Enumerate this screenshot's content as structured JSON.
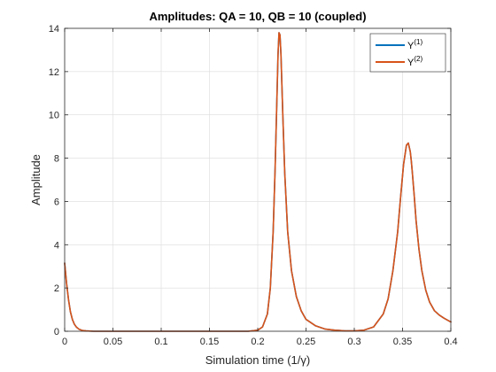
{
  "chart_data": {
    "type": "line",
    "title": "Amplitudes: QA = 10, QB = 10 (coupled)",
    "xlabel": "Simulation time (1/γ)",
    "ylabel": "Amplitude",
    "xlim": [
      0,
      0.4
    ],
    "ylim": [
      0,
      14
    ],
    "xticks": [
      "0",
      "0.05",
      "0.1",
      "0.15",
      "0.2",
      "0.25",
      "0.3",
      "0.35",
      "0.4"
    ],
    "yticks": [
      "0",
      "2",
      "4",
      "6",
      "8",
      "10",
      "12",
      "14"
    ],
    "grid": true,
    "legend_position": "top-right",
    "series": [
      {
        "name": "Y(1)",
        "name_base": "Y",
        "name_sup": "(1)",
        "color": "#0072BD",
        "x": [
          0,
          0.002,
          0.004,
          0.006,
          0.008,
          0.01,
          0.012,
          0.015,
          0.018,
          0.022,
          0.03,
          0.05,
          0.1,
          0.15,
          0.19,
          0.2,
          0.205,
          0.21,
          0.213,
          0.216,
          0.218,
          0.22,
          0.221,
          0.222,
          0.223,
          0.224,
          0.226,
          0.228,
          0.231,
          0.235,
          0.24,
          0.245,
          0.25,
          0.26,
          0.27,
          0.28,
          0.29,
          0.3,
          0.31,
          0.32,
          0.33,
          0.335,
          0.34,
          0.345,
          0.348,
          0.351,
          0.354,
          0.356,
          0.358,
          0.359,
          0.36,
          0.362,
          0.364,
          0.367,
          0.37,
          0.374,
          0.378,
          0.383,
          0.388,
          0.393,
          0.398,
          0.4
        ],
        "values": [
          3.15,
          2.2,
          1.45,
          0.9,
          0.55,
          0.33,
          0.2,
          0.09,
          0.04,
          0.015,
          0.0,
          0.0,
          0.0,
          0.0,
          0.0,
          0.05,
          0.2,
          0.8,
          2.0,
          4.6,
          7.5,
          11.0,
          12.8,
          13.8,
          13.7,
          12.8,
          10.0,
          7.3,
          4.6,
          2.8,
          1.6,
          0.95,
          0.55,
          0.25,
          0.1,
          0.05,
          0.02,
          0.02,
          0.05,
          0.2,
          0.8,
          1.5,
          2.8,
          4.6,
          6.2,
          7.7,
          8.6,
          8.7,
          8.3,
          7.9,
          7.4,
          6.3,
          5.1,
          3.8,
          2.8,
          1.9,
          1.35,
          0.95,
          0.75,
          0.6,
          0.48,
          0.43
        ]
      },
      {
        "name": "Y(2)",
        "name_base": "Y",
        "name_sup": "(2)",
        "color": "#D95319",
        "x": [
          0,
          0.002,
          0.004,
          0.006,
          0.008,
          0.01,
          0.012,
          0.015,
          0.018,
          0.022,
          0.03,
          0.05,
          0.1,
          0.15,
          0.19,
          0.2,
          0.205,
          0.21,
          0.213,
          0.216,
          0.218,
          0.22,
          0.221,
          0.222,
          0.223,
          0.224,
          0.226,
          0.228,
          0.231,
          0.235,
          0.24,
          0.245,
          0.25,
          0.26,
          0.27,
          0.28,
          0.29,
          0.3,
          0.31,
          0.32,
          0.33,
          0.335,
          0.34,
          0.345,
          0.348,
          0.351,
          0.354,
          0.356,
          0.358,
          0.359,
          0.36,
          0.362,
          0.364,
          0.367,
          0.37,
          0.374,
          0.378,
          0.383,
          0.388,
          0.393,
          0.398,
          0.4
        ],
        "values": [
          3.15,
          2.2,
          1.45,
          0.9,
          0.55,
          0.33,
          0.2,
          0.09,
          0.04,
          0.015,
          0.0,
          0.0,
          0.0,
          0.0,
          0.0,
          0.05,
          0.2,
          0.8,
          2.0,
          4.6,
          7.5,
          11.0,
          12.8,
          13.8,
          13.7,
          12.8,
          10.0,
          7.3,
          4.6,
          2.8,
          1.6,
          0.95,
          0.55,
          0.25,
          0.1,
          0.05,
          0.02,
          0.02,
          0.05,
          0.2,
          0.8,
          1.5,
          2.8,
          4.6,
          6.2,
          7.7,
          8.6,
          8.7,
          8.3,
          7.9,
          7.4,
          6.3,
          5.1,
          3.8,
          2.8,
          1.9,
          1.35,
          0.95,
          0.75,
          0.6,
          0.48,
          0.43
        ]
      }
    ]
  }
}
